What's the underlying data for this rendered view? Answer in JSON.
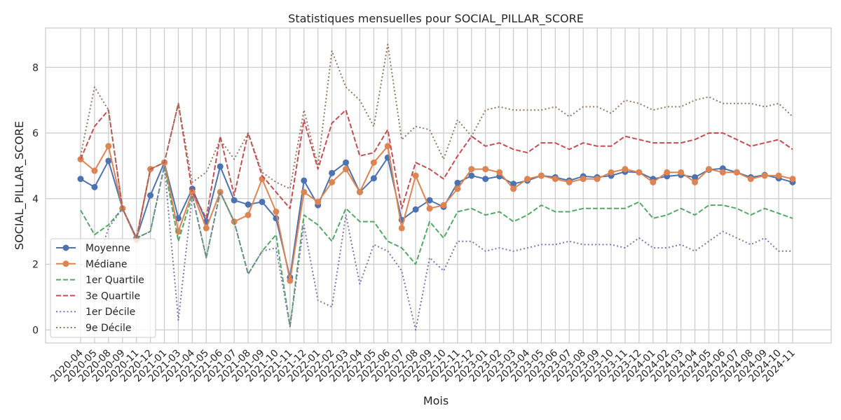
{
  "chart_data": {
    "type": "line",
    "title": "Statistiques mensuelles pour SOCIAL_PILLAR_SCORE",
    "xlabel": "Mois",
    "ylabel": "SOCIAL_PILLAR_SCORE",
    "ylim": [
      -0.4,
      9.2
    ],
    "yticks": [
      0,
      2,
      4,
      6,
      8
    ],
    "grid": true,
    "legend_position": "lower-left",
    "categories": [
      "2020-04",
      "2020-05",
      "2020-08",
      "2020-09",
      "2020-11",
      "2020-12",
      "2021-01",
      "2021-03",
      "2021-04",
      "2021-05",
      "2021-06",
      "2021-07",
      "2021-08",
      "2021-09",
      "2021-10",
      "2021-11",
      "2021-12",
      "2022-01",
      "2022-02",
      "2022-03",
      "2022-04",
      "2022-05",
      "2022-06",
      "2022-07",
      "2022-08",
      "2022-09",
      "2022-10",
      "2022-11",
      "2022-12",
      "2023-01",
      "2023-02",
      "2023-03",
      "2023-04",
      "2023-05",
      "2023-06",
      "2023-07",
      "2023-08",
      "2023-09",
      "2023-10",
      "2023-11",
      "2023-12",
      "2024-01",
      "2024-02",
      "2024-03",
      "2024-04",
      "2024-05",
      "2024-06",
      "2024-07",
      "2024-08",
      "2024-09",
      "2024-10",
      "2024-11"
    ],
    "series": [
      {
        "name": "Moyenne",
        "color": "#4c72b0",
        "style": "solid-marker",
        "values": [
          4.6,
          4.35,
          5.15,
          3.7,
          2.8,
          4.1,
          5.1,
          3.4,
          4.3,
          3.3,
          4.98,
          3.95,
          3.82,
          3.9,
          3.4,
          1.6,
          4.55,
          3.8,
          4.78,
          5.1,
          4.2,
          4.62,
          5.25,
          3.35,
          3.67,
          3.95,
          3.75,
          4.48,
          4.7,
          4.6,
          4.68,
          4.45,
          4.55,
          4.7,
          4.65,
          4.55,
          4.68,
          4.65,
          4.7,
          4.82,
          4.8,
          4.6,
          4.68,
          4.72,
          4.65,
          4.88,
          4.92,
          4.8,
          4.65,
          4.72,
          4.62,
          4.5
        ]
      },
      {
        "name": "Médiane",
        "color": "#dd8452",
        "style": "solid-marker",
        "values": [
          5.2,
          4.85,
          5.6,
          3.7,
          2.75,
          4.9,
          5.1,
          3.0,
          4.2,
          3.1,
          4.2,
          3.3,
          3.5,
          4.6,
          3.6,
          1.5,
          4.2,
          3.9,
          4.5,
          4.9,
          4.2,
          5.1,
          5.6,
          3.1,
          4.7,
          3.7,
          3.8,
          4.3,
          4.9,
          4.9,
          4.8,
          4.3,
          4.6,
          4.7,
          4.6,
          4.5,
          4.6,
          4.6,
          4.8,
          4.9,
          4.8,
          4.5,
          4.8,
          4.8,
          4.5,
          4.9,
          4.8,
          4.8,
          4.6,
          4.7,
          4.7,
          4.6
        ]
      },
      {
        "name": "1er Quartile",
        "color": "#55a868",
        "style": "dashed",
        "values": [
          3.65,
          2.9,
          3.2,
          3.7,
          2.8,
          3.0,
          5.0,
          2.7,
          4.1,
          2.2,
          4.2,
          3.3,
          1.7,
          2.4,
          2.9,
          0.1,
          3.5,
          3.2,
          2.7,
          3.7,
          3.3,
          3.3,
          2.7,
          2.5,
          2.0,
          3.3,
          2.8,
          3.6,
          3.7,
          3.5,
          3.6,
          3.3,
          3.5,
          3.8,
          3.6,
          3.6,
          3.7,
          3.7,
          3.7,
          3.7,
          3.9,
          3.4,
          3.5,
          3.7,
          3.5,
          3.8,
          3.8,
          3.7,
          3.5,
          3.7,
          3.55,
          3.4
        ]
      },
      {
        "name": "3e Quartile",
        "color": "#c44e52",
        "style": "dashed",
        "values": [
          5.2,
          6.2,
          6.7,
          3.7,
          2.8,
          4.9,
          5.1,
          6.9,
          4.2,
          3.4,
          5.9,
          4.1,
          6.0,
          4.7,
          4.2,
          3.7,
          6.4,
          4.9,
          6.3,
          6.7,
          5.3,
          5.4,
          6.1,
          3.7,
          5.1,
          4.9,
          4.6,
          5.3,
          5.9,
          5.6,
          5.7,
          5.5,
          5.4,
          5.7,
          5.7,
          5.5,
          5.7,
          5.6,
          5.6,
          5.9,
          5.8,
          5.7,
          5.7,
          5.7,
          5.8,
          6.0,
          6.0,
          5.8,
          5.6,
          5.7,
          5.8,
          5.5
        ]
      },
      {
        "name": "1er Décile",
        "color": "#8172b3",
        "style": "dotted",
        "values": [
          2.0,
          1.8,
          3.1,
          3.7,
          2.8,
          3.0,
          5.0,
          0.3,
          4.1,
          2.2,
          4.2,
          3.3,
          1.7,
          2.4,
          2.5,
          0.1,
          3.2,
          0.9,
          0.7,
          3.5,
          1.4,
          2.6,
          2.4,
          1.8,
          0.0,
          2.2,
          1.8,
          2.7,
          2.7,
          2.4,
          2.5,
          2.4,
          2.5,
          2.6,
          2.6,
          2.7,
          2.6,
          2.6,
          2.6,
          2.5,
          2.8,
          2.5,
          2.5,
          2.6,
          2.4,
          2.7,
          3.0,
          2.8,
          2.6,
          2.8,
          2.4,
          2.4
        ]
      },
      {
        "name": "9e Décile",
        "color": "#937860",
        "style": "dotted",
        "values": [
          5.3,
          7.4,
          6.7,
          3.7,
          2.8,
          4.9,
          5.1,
          6.9,
          4.5,
          4.8,
          5.8,
          5.2,
          6.0,
          4.8,
          4.5,
          4.3,
          6.7,
          5.0,
          8.5,
          7.4,
          7.0,
          6.2,
          8.7,
          5.8,
          6.2,
          6.1,
          5.2,
          6.4,
          5.9,
          6.7,
          6.8,
          6.7,
          6.7,
          6.7,
          6.8,
          6.5,
          6.8,
          6.8,
          6.6,
          7.0,
          6.9,
          6.7,
          6.8,
          6.8,
          7.0,
          7.1,
          6.9,
          6.9,
          6.9,
          6.8,
          6.9,
          6.5
        ]
      }
    ]
  }
}
